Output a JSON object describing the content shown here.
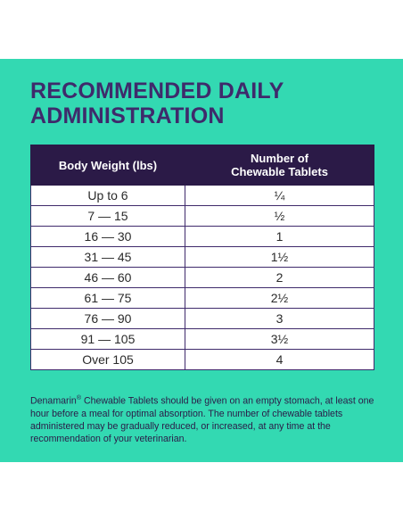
{
  "title": {
    "line1": "RECOMMENDED DAILY",
    "line2": "ADMINISTRATION"
  },
  "table": {
    "headers": {
      "weight": "Body Weight (lbs)",
      "tablets_line1": "Number of",
      "tablets_line2": "Chewable Tablets"
    },
    "rows": [
      {
        "weight": "Up to 6",
        "tablets": "¼"
      },
      {
        "weight": "7  —  15",
        "tablets": "½"
      },
      {
        "weight": "16  —  30",
        "tablets": "1"
      },
      {
        "weight": "31  —  45",
        "tablets": "1½"
      },
      {
        "weight": "46  —  60",
        "tablets": "2"
      },
      {
        "weight": "61  —  75",
        "tablets": "2½"
      },
      {
        "weight": "76  —  90",
        "tablets": "3"
      },
      {
        "weight": "91  —  105",
        "tablets": "3½"
      },
      {
        "weight": "Over 105",
        "tablets": "4"
      }
    ]
  },
  "note": {
    "brand": "Denamarin",
    "reg": "®",
    "text": " Chewable Tablets should be given on an empty stomach, at least one hour before a meal for optimal absorption. The number of chewable tablets administered may be gradually reduced, or increased, at any time at the recommendation of your veterinarian."
  },
  "colors": {
    "background_panel": "#33d9b2",
    "header_bg": "#2b1a47",
    "title_text": "#3f2a6b"
  }
}
